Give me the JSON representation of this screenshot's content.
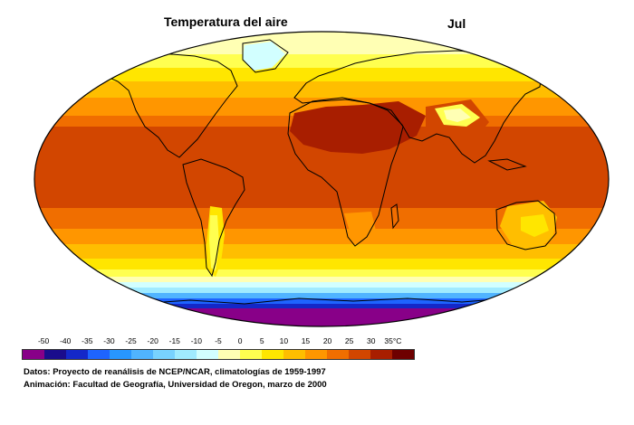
{
  "title": "Temperatura del aire",
  "month": "Jul",
  "legend": {
    "unit_label": "35°C",
    "ticks": [
      "-50",
      "-40",
      "-35",
      "-30",
      "-25",
      "-20",
      "-15",
      "-10",
      "-5",
      "0",
      "5",
      "10",
      "15",
      "20",
      "25",
      "30",
      "35°C"
    ],
    "colors": [
      "#880088",
      "#1a0c8c",
      "#1428c8",
      "#1e64ff",
      "#2896ff",
      "#50b4ff",
      "#78d2ff",
      "#a0ebff",
      "#d2ffff",
      "#ffffb4",
      "#ffff50",
      "#ffe600",
      "#ffbe00",
      "#ff9600",
      "#f06e00",
      "#d24600",
      "#a81e00",
      "#6e0000"
    ]
  },
  "credits": {
    "line1": "Datos: Proyecto de reanálisis de NCEP/NCAR, climatologías de 1959-1997",
    "line2": "Animación: Facultad de Geografía, Universidad de Oregon, marzo de 2000"
  }
}
